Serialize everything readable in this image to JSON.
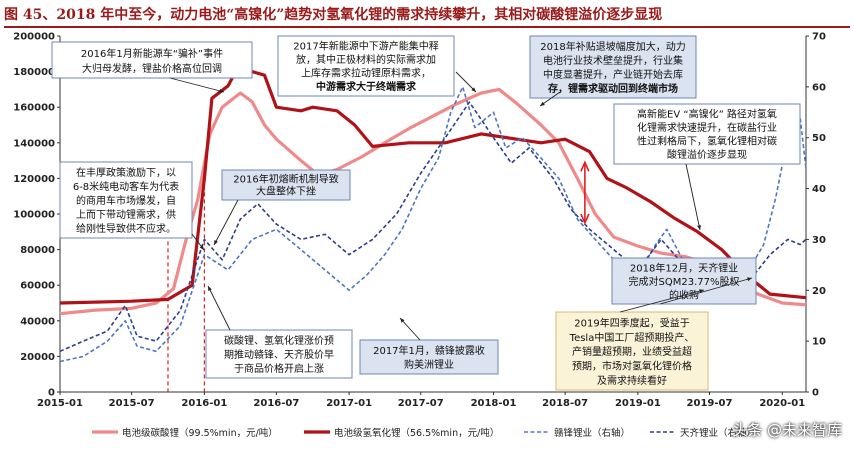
{
  "title": "图 45、2018 年中至今，动力电池“高镍化”趋势对氢氧化锂的需求持续攀升，其相对碳酸锂溢价逐步显现",
  "watermark": "头条 @未来智库",
  "chart_data": {
    "type": "line",
    "title": "图 45、2018 年中至今，动力电池“高镍化”趋势对氢氧化锂的需求持续攀升，其相对碳酸锂溢价逐步显现",
    "x_ticks": [
      "2015-01",
      "2015-07",
      "2016-01",
      "2016-07",
      "2017-01",
      "2017-07",
      "2018-01",
      "2018-07",
      "2019-01",
      "2019-07",
      "2020-01"
    ],
    "x_range": [
      "2015-01-01",
      "2020-03-01"
    ],
    "y_left": {
      "min": 0,
      "max": 200000,
      "ticks": [
        0,
        20000,
        40000,
        60000,
        80000,
        100000,
        120000,
        140000,
        160000,
        180000,
        200000
      ]
    },
    "y_right": {
      "min": 0,
      "max": 70,
      "ticks": [
        0,
        10,
        20,
        30,
        40,
        50,
        60,
        70
      ]
    },
    "grid": false,
    "legend_position": "bottom",
    "colors": {
      "carbonate": "#f08a8a",
      "hydroxide": "#b01218",
      "ganfeng": "#4a78c0",
      "tianqi": "#2c3e8c",
      "annotation_border": "#6f86b8",
      "annotation_fill": "#dbe3f1"
    },
    "series": [
      {
        "name": "电池级碳酸锂（99.5%min，元/吨）",
        "axis": "left",
        "style": "solid-thick",
        "color": "#f08a8a",
        "points": [
          [
            "2015-01-01",
            44000
          ],
          [
            "2015-04-01",
            46000
          ],
          [
            "2015-07-01",
            47000
          ],
          [
            "2015-09-01",
            50000
          ],
          [
            "2015-10-15",
            58000
          ],
          [
            "2015-11-15",
            85000
          ],
          [
            "2015-12-15",
            108000
          ],
          [
            "2016-01-15",
            145000
          ],
          [
            "2016-02-15",
            160000
          ],
          [
            "2016-03-15",
            165000
          ],
          [
            "2016-04-01",
            168000
          ],
          [
            "2016-05-01",
            163000
          ],
          [
            "2016-06-01",
            150000
          ],
          [
            "2016-07-01",
            142000
          ],
          [
            "2016-09-01",
            130000
          ],
          [
            "2016-10-15",
            122000
          ],
          [
            "2016-12-01",
            125000
          ],
          [
            "2017-02-01",
            132000
          ],
          [
            "2017-04-01",
            140000
          ],
          [
            "2017-06-01",
            148000
          ],
          [
            "2017-08-01",
            155000
          ],
          [
            "2017-10-01",
            162000
          ],
          [
            "2017-12-01",
            168000
          ],
          [
            "2018-01-15",
            170000
          ],
          [
            "2018-03-01",
            162000
          ],
          [
            "2018-05-01",
            150000
          ],
          [
            "2018-06-15",
            140000
          ],
          [
            "2018-08-01",
            120000
          ],
          [
            "2018-09-15",
            100000
          ],
          [
            "2018-11-01",
            87000
          ],
          [
            "2019-01-01",
            82000
          ],
          [
            "2019-03-01",
            78000
          ],
          [
            "2019-05-01",
            76000
          ],
          [
            "2019-07-01",
            72000
          ],
          [
            "2019-09-01",
            62000
          ],
          [
            "2019-11-01",
            55000
          ],
          [
            "2020-01-01",
            50000
          ],
          [
            "2020-03-01",
            49000
          ]
        ]
      },
      {
        "name": "电池级氢氧化锂（56.5%min，元/吨）",
        "axis": "left",
        "style": "solid-thick",
        "color": "#b01218",
        "points": [
          [
            "2015-01-01",
            50000
          ],
          [
            "2015-07-01",
            51000
          ],
          [
            "2015-10-01",
            52000
          ],
          [
            "2015-12-01",
            60000
          ],
          [
            "2016-01-01",
            120000
          ],
          [
            "2016-01-20",
            165000
          ],
          [
            "2016-03-01",
            172000
          ],
          [
            "2016-04-01",
            185000
          ],
          [
            "2016-05-01",
            180000
          ],
          [
            "2016-06-01",
            178000
          ],
          [
            "2016-07-01",
            160000
          ],
          [
            "2016-09-01",
            158000
          ],
          [
            "2016-10-01",
            160000
          ],
          [
            "2016-12-01",
            158000
          ],
          [
            "2017-01-15",
            150000
          ],
          [
            "2017-03-01",
            138000
          ],
          [
            "2017-06-01",
            140000
          ],
          [
            "2017-09-01",
            140000
          ],
          [
            "2017-12-01",
            145000
          ],
          [
            "2018-02-01",
            143000
          ],
          [
            "2018-05-01",
            140000
          ],
          [
            "2018-07-01",
            142000
          ],
          [
            "2018-09-01",
            135000
          ],
          [
            "2018-10-15",
            120000
          ],
          [
            "2018-12-01",
            115000
          ],
          [
            "2019-02-01",
            107000
          ],
          [
            "2019-04-01",
            98000
          ],
          [
            "2019-06-01",
            90000
          ],
          [
            "2019-08-01",
            80000
          ],
          [
            "2019-10-01",
            66000
          ],
          [
            "2019-12-01",
            55000
          ],
          [
            "2020-03-01",
            53000
          ]
        ]
      },
      {
        "name": "赣锋锂业（右轴）",
        "axis": "right",
        "style": "dashed",
        "color": "#4a78c0",
        "points": [
          [
            "2015-01-01",
            6
          ],
          [
            "2015-03-01",
            7
          ],
          [
            "2015-05-01",
            10
          ],
          [
            "2015-06-15",
            14
          ],
          [
            "2015-07-15",
            9
          ],
          [
            "2015-09-01",
            8
          ],
          [
            "2015-11-01",
            13
          ],
          [
            "2016-01-01",
            27
          ],
          [
            "2016-03-01",
            24
          ],
          [
            "2016-05-01",
            30
          ],
          [
            "2016-07-01",
            32
          ],
          [
            "2016-09-01",
            28
          ],
          [
            "2016-11-01",
            24
          ],
          [
            "2017-01-01",
            20
          ],
          [
            "2017-02-15",
            23
          ],
          [
            "2017-04-01",
            27
          ],
          [
            "2017-05-15",
            32
          ],
          [
            "2017-07-01",
            40
          ],
          [
            "2017-08-15",
            46
          ],
          [
            "2017-09-15",
            55
          ],
          [
            "2017-10-15",
            60
          ],
          [
            "2017-11-15",
            52
          ],
          [
            "2018-01-01",
            55
          ],
          [
            "2018-02-01",
            48
          ],
          [
            "2018-03-15",
            50
          ],
          [
            "2018-05-01",
            46
          ],
          [
            "2018-06-15",
            42
          ],
          [
            "2018-08-01",
            34
          ],
          [
            "2018-09-15",
            30
          ],
          [
            "2018-11-01",
            26
          ],
          [
            "2019-01-01",
            23
          ],
          [
            "2019-02-15",
            29
          ],
          [
            "2019-03-15",
            32
          ],
          [
            "2019-05-01",
            25
          ],
          [
            "2019-07-01",
            23
          ],
          [
            "2019-08-15",
            21
          ],
          [
            "2019-10-01",
            23
          ],
          [
            "2019-11-15",
            29
          ],
          [
            "2019-12-15",
            38
          ],
          [
            "2020-01-15",
            50
          ],
          [
            "2020-02-15",
            54
          ],
          [
            "2020-03-01",
            44
          ]
        ]
      },
      {
        "name": "天齐锂业（右轴）",
        "axis": "right",
        "style": "dashed",
        "color": "#2c3e8c",
        "points": [
          [
            "2015-01-01",
            8
          ],
          [
            "2015-03-01",
            10
          ],
          [
            "2015-05-01",
            12
          ],
          [
            "2015-06-15",
            17
          ],
          [
            "2015-07-15",
            11
          ],
          [
            "2015-09-01",
            10
          ],
          [
            "2015-11-01",
            16
          ],
          [
            "2016-01-01",
            30
          ],
          [
            "2016-02-15",
            26
          ],
          [
            "2016-04-01",
            34
          ],
          [
            "2016-05-15",
            37
          ],
          [
            "2016-07-01",
            33
          ],
          [
            "2016-09-01",
            30
          ],
          [
            "2016-11-01",
            31
          ],
          [
            "2017-01-01",
            27
          ],
          [
            "2017-03-01",
            30
          ],
          [
            "2017-05-01",
            35
          ],
          [
            "2017-07-01",
            43
          ],
          [
            "2017-09-01",
            50
          ],
          [
            "2017-11-01",
            57
          ],
          [
            "2018-01-01",
            50
          ],
          [
            "2018-02-15",
            45
          ],
          [
            "2018-04-01",
            48
          ],
          [
            "2018-06-01",
            42
          ],
          [
            "2018-07-15",
            36
          ],
          [
            "2018-09-01",
            32
          ],
          [
            "2018-11-01",
            28
          ],
          [
            "2019-01-01",
            24
          ],
          [
            "2019-03-01",
            30
          ],
          [
            "2019-04-15",
            26
          ],
          [
            "2019-06-01",
            23
          ],
          [
            "2019-08-01",
            20
          ],
          [
            "2019-10-01",
            21
          ],
          [
            "2019-12-01",
            27
          ],
          [
            "2020-01-15",
            30
          ],
          [
            "2020-02-15",
            29
          ],
          [
            "2020-03-01",
            30
          ]
        ]
      }
    ],
    "annotations": [
      {
        "id": "a1",
        "text": [
          "2016年1月新能源车“骗补”事件",
          "大归母发酵，锂盐价格高位回调"
        ]
      },
      {
        "id": "a2",
        "text": [
          "2017年新能源中下游产能集中释",
          "放，其中正极材料的实际需求加",
          "上库存需求拉动锂原料需求，",
          "中游需求大于终端需求"
        ]
      },
      {
        "id": "a3",
        "text": [
          "2018年补贴退坡幅度加大，动力",
          "电池行业技术壁垒提升，行业集",
          "中度显著提升，产业链开始去库",
          "存，锂需求驱动回到终端市场"
        ]
      },
      {
        "id": "a4",
        "text": [
          "高新能EV “高镍化” 路径对氢氧",
          "化锂需求快速提升，在碳盐行业",
          "性过剩格局下，氢氧化锂相对碳",
          "酸锂溢价逐步显现"
        ]
      },
      {
        "id": "a5",
        "text": [
          "在丰厚政策激励下，以",
          "6-8米纯电动客车为代表",
          "的商用车市场爆发，自",
          "上而下带动锂需求，供",
          "给刚性导致供不应求。"
        ]
      },
      {
        "id": "a6",
        "text": [
          "2016年初熔断机制导致",
          "大盘整体下挫"
        ]
      },
      {
        "id": "a7",
        "text": [
          "2018年12月，天齐锂业",
          "完成对SQM23.77%股权",
          "的收购"
        ]
      },
      {
        "id": "a8",
        "text": [
          "碳酸锂、氢氧化锂涨价预",
          "期推动赣锋、天齐股价早",
          "于商品价格开启上涨"
        ]
      },
      {
        "id": "a9",
        "text": [
          "2017年1月，赣锋披露收",
          "购美洲锂业"
        ]
      },
      {
        "id": "a10",
        "text": [
          "2019年四季度起，受益于",
          "Tesla中国工厂超预期投产、",
          "产销量超预期，业绩受益超",
          "预期，市场对氢氧化锂价格",
          "及需求持续看好"
        ]
      }
    ]
  }
}
